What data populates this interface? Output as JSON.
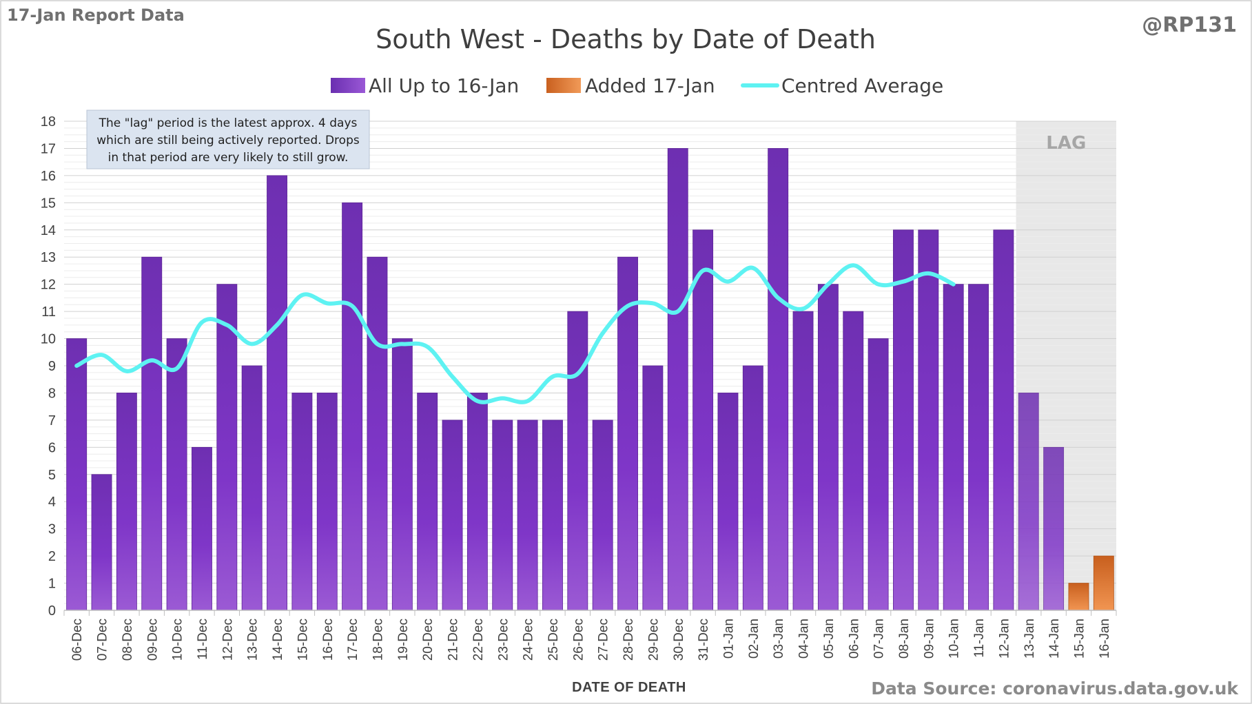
{
  "header": {
    "report_label": "17-Jan Report Data",
    "handle": "@RP131",
    "source": "Data Source: coronavirus.data.gov.uk"
  },
  "annotation": {
    "lines": [
      "The \"lag\" period is the latest approx. 4 days",
      "which are still being actively reported. Drops",
      "in that period are very likely to still grow."
    ],
    "lag_label": "LAG"
  },
  "colors": {
    "bar_main": "#7a34bf",
    "bar_added": "#e07a33",
    "average_line": "#5ef2f2",
    "lag_shade": "#e8e8e8",
    "note_bg": "#dbe4f0"
  },
  "chart_data": {
    "type": "bar",
    "title": "South West - Deaths by Date of Death",
    "xlabel": "DATE OF DEATH",
    "ylabel": "",
    "ylim": [
      0,
      18
    ],
    "yticks": [
      0,
      1,
      2,
      3,
      4,
      5,
      6,
      7,
      8,
      9,
      10,
      11,
      12,
      13,
      14,
      15,
      16,
      17,
      18
    ],
    "grid": true,
    "legend_position": "top",
    "categories": [
      "06-Dec",
      "07-Dec",
      "08-Dec",
      "09-Dec",
      "10-Dec",
      "11-Dec",
      "12-Dec",
      "13-Dec",
      "14-Dec",
      "15-Dec",
      "16-Dec",
      "17-Dec",
      "18-Dec",
      "19-Dec",
      "20-Dec",
      "21-Dec",
      "22-Dec",
      "23-Dec",
      "24-Dec",
      "25-Dec",
      "26-Dec",
      "27-Dec",
      "28-Dec",
      "29-Dec",
      "30-Dec",
      "31-Dec",
      "01-Jan",
      "02-Jan",
      "03-Jan",
      "04-Jan",
      "05-Jan",
      "06-Jan",
      "07-Jan",
      "08-Jan",
      "09-Jan",
      "10-Jan",
      "11-Jan",
      "12-Jan",
      "13-Jan",
      "14-Jan",
      "15-Jan",
      "16-Jan"
    ],
    "series": [
      {
        "name": "All Up to 16-Jan",
        "kind": "bar",
        "values": [
          10,
          5,
          8,
          13,
          10,
          6,
          12,
          9,
          16,
          8,
          8,
          15,
          13,
          10,
          8,
          7,
          8,
          7,
          7,
          7,
          11,
          7,
          13,
          9,
          17,
          14,
          8,
          9,
          17,
          11,
          12,
          11,
          10,
          14,
          14,
          12,
          12,
          14,
          8,
          6,
          0,
          0
        ]
      },
      {
        "name": "Added 17-Jan",
        "kind": "bar_stacked",
        "values": [
          0,
          0,
          0,
          0,
          0,
          0,
          0,
          0,
          0,
          0,
          0,
          0,
          0,
          0,
          0,
          0,
          0,
          0,
          0,
          0,
          0,
          0,
          0,
          0,
          0,
          0,
          0,
          0,
          0,
          0,
          0,
          0,
          0,
          0,
          0,
          0,
          0,
          0,
          0,
          0,
          1,
          2
        ]
      },
      {
        "name": "Centred Average",
        "kind": "line",
        "values": [
          9.0,
          9.4,
          8.8,
          9.2,
          8.9,
          10.6,
          10.5,
          9.8,
          10.5,
          11.6,
          11.3,
          11.2,
          9.8,
          9.8,
          9.7,
          8.6,
          7.7,
          7.8,
          7.7,
          8.6,
          8.7,
          10.2,
          11.2,
          11.3,
          11.0,
          12.5,
          12.1,
          12.6,
          11.5,
          11.1,
          12.0,
          12.7,
          12.0,
          12.1,
          12.4,
          12.0,
          null,
          null,
          null,
          null,
          null,
          null
        ]
      }
    ],
    "lag_period": {
      "from": "13-Jan",
      "to": "16-Jan"
    }
  }
}
